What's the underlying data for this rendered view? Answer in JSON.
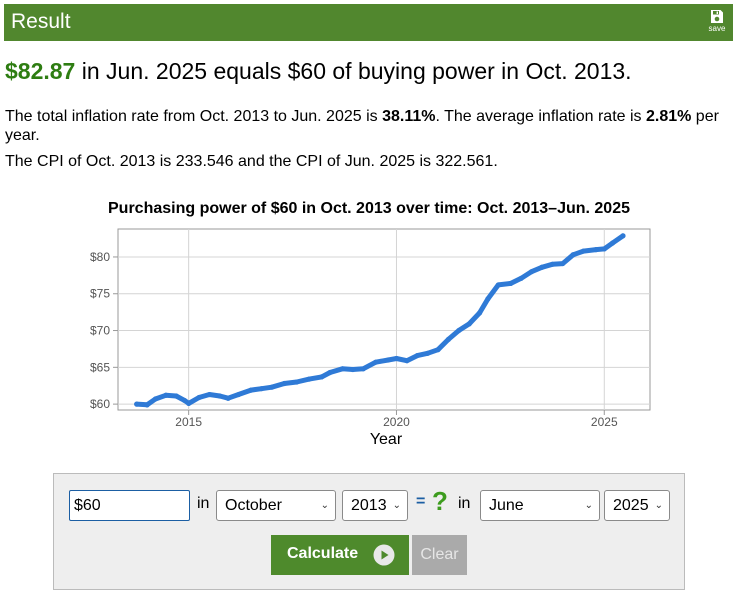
{
  "header": {
    "title": "Result",
    "save_label": "save"
  },
  "summary": {
    "amount": "$82.87",
    "rest": " in Jun. 2025 equals $60 of buying power in Oct. 2013."
  },
  "details": {
    "p1_a": "The total inflation rate from Oct. 2013 to Jun. 2025 is ",
    "p1_total": "38.11%",
    "p1_b": ". The average inflation rate is ",
    "p1_avg": "2.81%",
    "p1_c": " per year.",
    "p2": "The CPI of Oct. 2013 is 233.546 and the CPI of Jun. 2025 is 322.561."
  },
  "chart_data": {
    "type": "line",
    "title": "Purchasing power of $60 in Oct. 2013 over time: Oct. 2013–Jun. 2025",
    "xlabel": "Year",
    "ylabel": "",
    "xlim": [
      2013.3,
      2026.1
    ],
    "ylim": [
      59.2,
      83.8
    ],
    "xticks": [
      2015,
      2020,
      2025
    ],
    "xtick_labels": [
      "2015",
      "2020",
      "2025"
    ],
    "yticks": [
      60,
      65,
      70,
      75,
      80
    ],
    "ytick_labels": [
      "$60",
      "$65",
      "$70",
      "$75",
      "$80"
    ],
    "grid": true,
    "color": "#2f7ad6",
    "series": [
      {
        "x": [
          2013.75,
          2014.0,
          2014.2,
          2014.45,
          2014.7,
          2014.9,
          2015.0,
          2015.25,
          2015.5,
          2015.75,
          2015.95,
          2016.2,
          2016.5,
          2016.75,
          2017.0,
          2017.3,
          2017.6,
          2017.9,
          2018.2,
          2018.4,
          2018.7,
          2018.95,
          2019.2,
          2019.5,
          2019.8,
          2020.0,
          2020.25,
          2020.5,
          2020.75,
          2021.0,
          2021.25,
          2021.5,
          2021.75,
          2022.0,
          2022.2,
          2022.45,
          2022.75,
          2023.0,
          2023.25,
          2023.5,
          2023.75,
          2024.0,
          2024.25,
          2024.5,
          2024.8,
          2025.0,
          2025.2,
          2025.45
        ],
        "y": [
          60.0,
          59.9,
          60.7,
          61.2,
          61.1,
          60.5,
          60.1,
          60.9,
          61.3,
          61.1,
          60.8,
          61.3,
          61.9,
          62.1,
          62.3,
          62.8,
          63.0,
          63.4,
          63.7,
          64.3,
          64.8,
          64.7,
          64.8,
          65.7,
          66.0,
          66.2,
          65.9,
          66.6,
          66.9,
          67.4,
          68.8,
          70.0,
          70.9,
          72.4,
          74.3,
          76.2,
          76.4,
          77.1,
          78.0,
          78.6,
          79.0,
          79.1,
          80.3,
          80.8,
          81.0,
          81.1,
          81.9,
          82.87
        ]
      }
    ]
  },
  "calculator": {
    "amount_value": "$60",
    "in_label_1": "in",
    "from_month": "October",
    "from_year": "2013",
    "equals": "=",
    "question": "?",
    "in_label_2": "in",
    "to_month": "June",
    "to_year": "2025",
    "calculate_label": "Calculate",
    "clear_label": "Clear"
  },
  "colors": {
    "brand_green": "#51872e",
    "amount_green": "#2e7d12",
    "line_blue": "#2f7ad6"
  },
  "icons": {
    "save": "floppy-disk-icon",
    "play": "play-circle-icon",
    "select": "chevron-down-icon"
  }
}
